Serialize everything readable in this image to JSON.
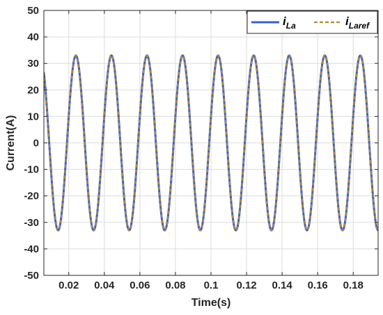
{
  "chart_data": {
    "type": "line",
    "xlabel": "Time(s)",
    "ylabel": "Current(A)",
    "xlim": [
      0.006,
      0.194
    ],
    "ylim": [
      -50,
      50
    ],
    "xticks": [
      0.02,
      0.04,
      0.06,
      0.08,
      0.1,
      0.12,
      0.14,
      0.16,
      0.18
    ],
    "xtick_labels": [
      "0.02",
      "0.04",
      "0.06",
      "0.08",
      "0.1",
      "0.12",
      "0.14",
      "0.16",
      "0.18"
    ],
    "yticks": [
      -50,
      -40,
      -30,
      -20,
      -10,
      0,
      10,
      20,
      30,
      40,
      50
    ],
    "ytick_labels": [
      "-50",
      "-40",
      "-30",
      "-20",
      "-10",
      "0",
      "10",
      "20",
      "30",
      "40",
      "50"
    ],
    "grid": true,
    "legend_position": "top-right",
    "series": [
      {
        "name": "i_La",
        "legend_main": "i",
        "legend_sub": "La",
        "style": "solid",
        "color": "#3a5fc8",
        "amplitude": 33,
        "frequency_hz": 50,
        "peak_time": 0.024,
        "x": [
          0.006,
          0.014,
          0.024,
          0.034,
          0.044,
          0.054,
          0.064,
          0.074,
          0.084,
          0.094,
          0.104,
          0.114,
          0.124,
          0.134,
          0.144,
          0.154,
          0.164,
          0.174,
          0.184,
          0.194
        ],
        "y": [
          30,
          -33,
          33,
          -33,
          33,
          -33,
          33,
          -33,
          33,
          -33,
          33,
          -33,
          33,
          -33,
          33,
          -33,
          33,
          -33,
          33,
          -30
        ]
      },
      {
        "name": "i_Laref",
        "legend_main": "i",
        "legend_sub": "Laref",
        "style": "dashed",
        "color": "#b0893a",
        "amplitude": 33,
        "frequency_hz": 50,
        "peak_time": 0.024,
        "x": [
          0.006,
          0.014,
          0.024,
          0.034,
          0.044,
          0.054,
          0.064,
          0.074,
          0.084,
          0.094,
          0.104,
          0.114,
          0.124,
          0.134,
          0.144,
          0.154,
          0.164,
          0.174,
          0.184,
          0.194
        ],
        "y": [
          30,
          -33,
          33,
          -33,
          33,
          -33,
          33,
          -33,
          33,
          -33,
          33,
          -33,
          33,
          -33,
          33,
          -33,
          33,
          -33,
          33,
          -30
        ]
      }
    ]
  }
}
